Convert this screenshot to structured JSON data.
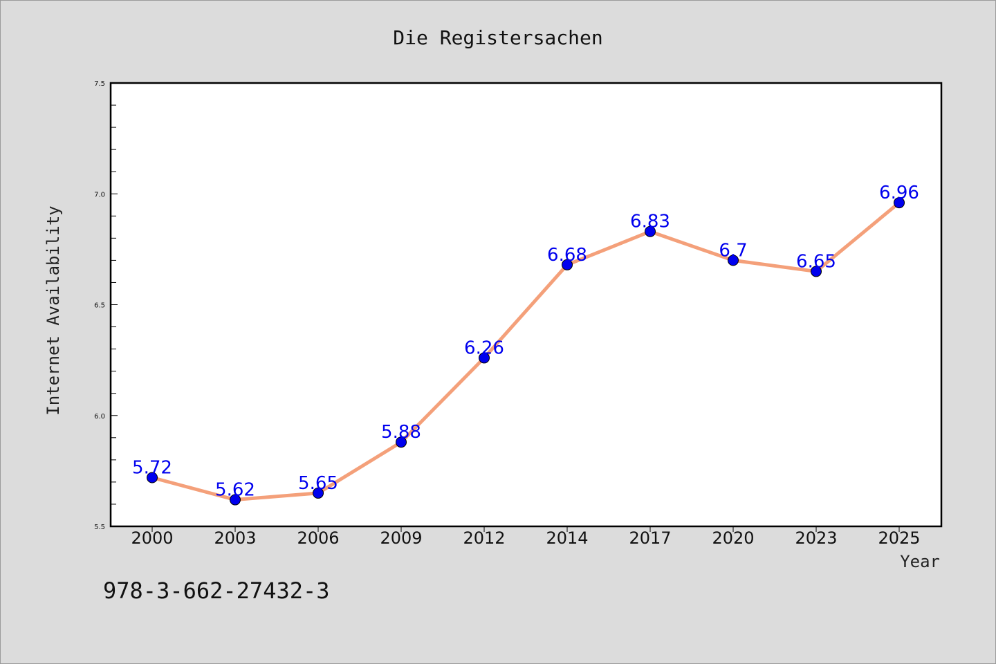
{
  "chart_data": {
    "type": "line",
    "title": "Die Registersachen",
    "xlabel": "Year",
    "ylabel": "Internet Availability",
    "categories": [
      "2000",
      "2003",
      "2006",
      "2009",
      "2012",
      "2014",
      "2017",
      "2020",
      "2023",
      "2025"
    ],
    "series": [
      {
        "values": [
          5.72,
          5.62,
          5.65,
          5.88,
          6.26,
          6.68,
          6.83,
          6.7,
          6.65,
          6.96
        ],
        "labels": [
          "5.72",
          "5.62",
          "5.65",
          "5.88",
          "6.26",
          "6.68",
          "6.83",
          "6.7",
          "6.65",
          "6.96"
        ],
        "line_color": "#f4a07a",
        "marker_color": "#0000ee",
        "label_color": "#0000ee"
      }
    ],
    "ylim": [
      5.5,
      7.5
    ],
    "yticks": [
      "5.5",
      "6.0",
      "6.5",
      "7.0",
      "7.5"
    ],
    "grid": false,
    "legend": "none"
  },
  "footer": {
    "isbn": "978-3-662-27432-3"
  }
}
